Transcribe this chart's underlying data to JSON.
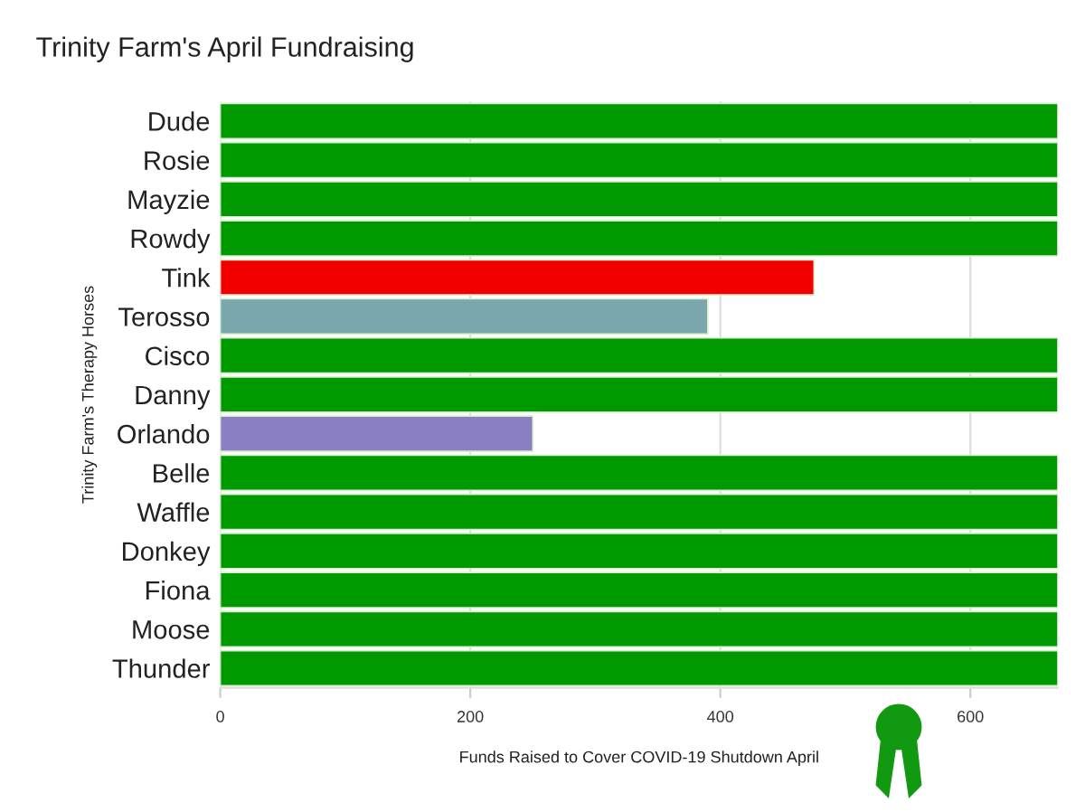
{
  "chart_data": {
    "type": "bar",
    "orientation": "horizontal",
    "title": "Trinity Farm's April Fundraising",
    "xlabel": "Funds Raised to Cover COVID-19 Shutdown April",
    "ylabel": "Trinity Farm's Therapy Horses",
    "categories": [
      "Dude",
      "Rosie",
      "Mayzie",
      "Rowdy",
      "Tink",
      "Terosso",
      "Cisco",
      "Danny",
      "Orlando",
      "Belle",
      "Waffle",
      "Donkey",
      "Fiona",
      "Moose",
      "Thunder"
    ],
    "values": [
      670,
      670,
      670,
      670,
      475,
      390,
      670,
      670,
      250,
      670,
      670,
      670,
      670,
      670,
      670
    ],
    "colors": [
      "#009900",
      "#009900",
      "#009900",
      "#009900",
      "#f20000",
      "#7aa6ad",
      "#009900",
      "#009900",
      "#8a7fc2",
      "#009900",
      "#009900",
      "#009900",
      "#009900",
      "#009900",
      "#009900"
    ],
    "xlim": [
      0,
      670
    ],
    "xticks": [
      0,
      200,
      400,
      600
    ],
    "grid": "x"
  }
}
